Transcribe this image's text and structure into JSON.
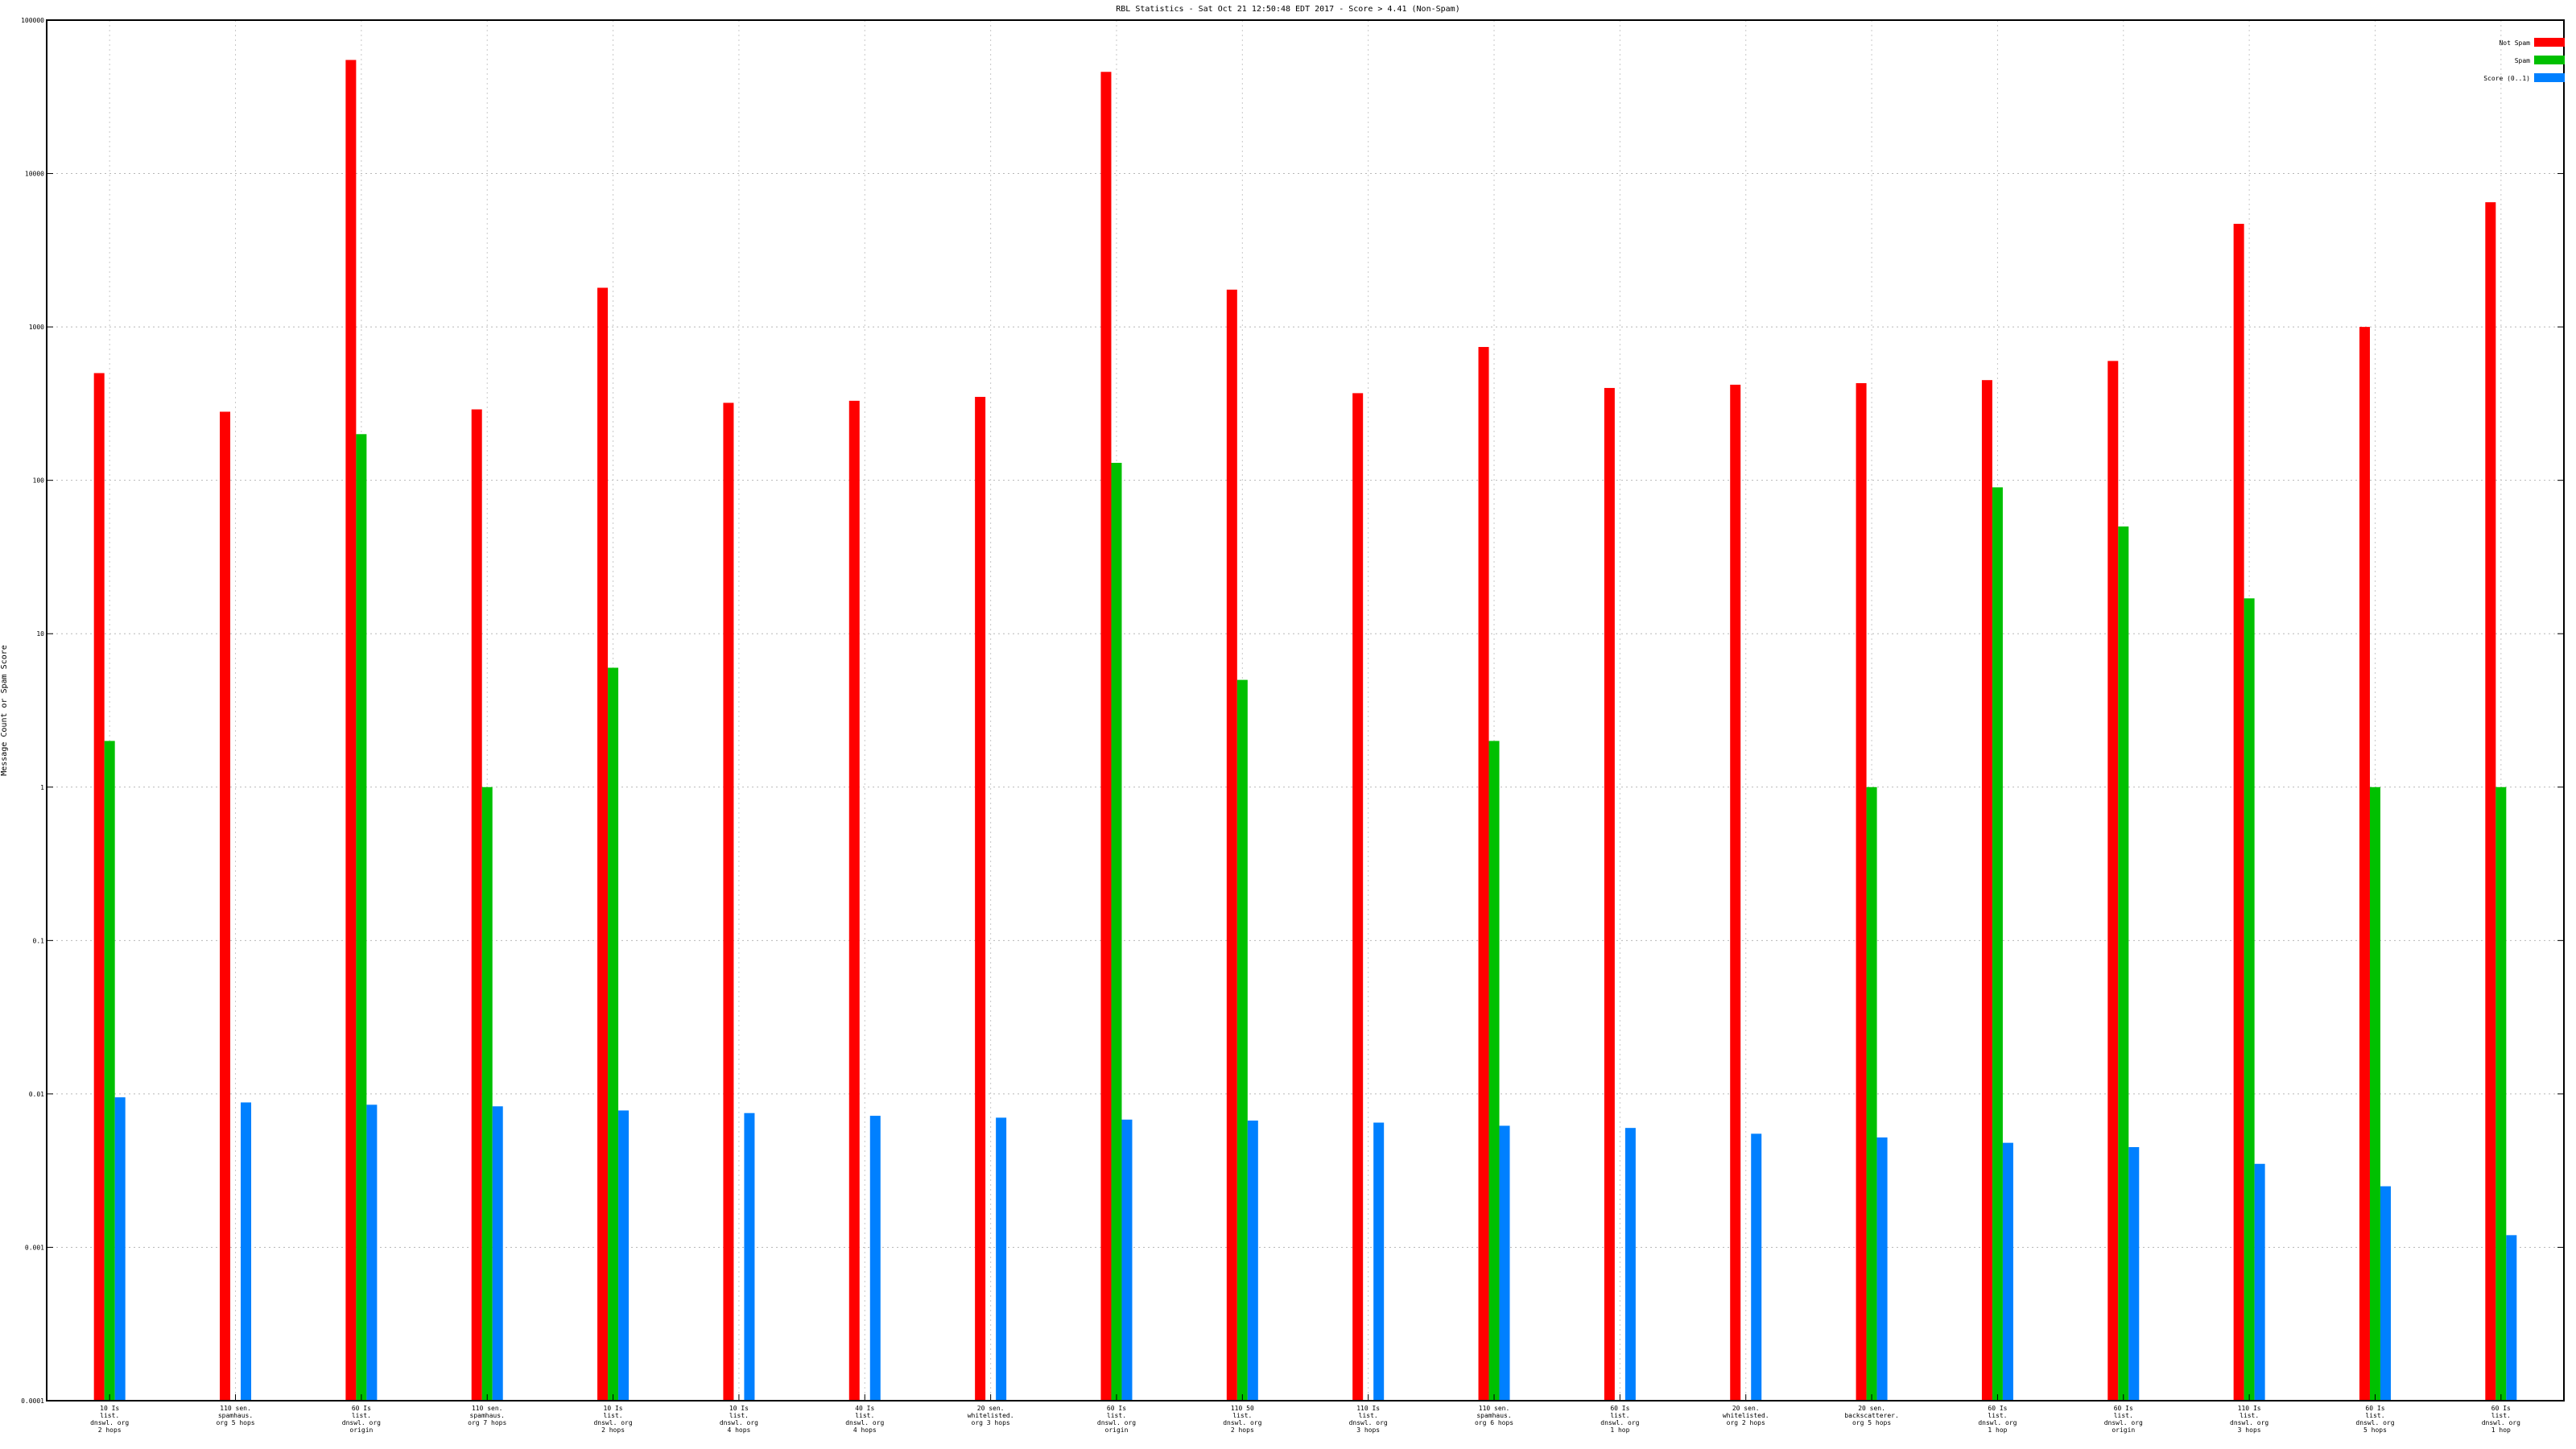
{
  "chart_data": {
    "type": "bar",
    "title": "RBL Statistics - Sat Oct 21 12:50:48 EDT 2017 - Score > 4.41 (Non-Spam)",
    "xlabel": "",
    "ylabel": "Message Count or Spam Score",
    "yscale": "log",
    "ylim": [
      0.0001,
      100000
    ],
    "yticks": [
      {
        "value": 0.0001,
        "label": "0.0001"
      },
      {
        "value": 0.001,
        "label": "0.001"
      },
      {
        "value": 0.01,
        "label": "0.01"
      },
      {
        "value": 0.1,
        "label": "0.1"
      },
      {
        "value": 1,
        "label": "1"
      },
      {
        "value": 10,
        "label": "10"
      },
      {
        "value": 100,
        "label": "100"
      },
      {
        "value": 1000,
        "label": "1000"
      },
      {
        "value": 10000,
        "label": "10000"
      },
      {
        "value": 100000,
        "label": "100000"
      }
    ],
    "grid": true,
    "legend_position": "top-right",
    "categories": [
      "10 Is list. dnswl. org 2 hops",
      "110 sen. spamhaus. org 5 hops",
      "60 Is list. dnswl. org origin",
      "110 sen. spamhaus. org 7 hops",
      "10 Is list. dnswl. org 2 hops",
      "10 Is list. dnswl. org 4 hops",
      "40 Is list. dnswl. org 4 hops",
      "20 sen. whitelisted. org 3 hops",
      "60 Is list. dnswl. org origin",
      "110 50 list. dnswl. org 2 hops",
      "110 Is list. dnswl. org 3 hops",
      "110 sen. spamhaus. org 6 hops",
      "60 Is list. dnswl. org 1 hop",
      "20 sen. whitelisted. org 2 hops",
      "20 sen. backscatterer. org 5 hops",
      "60 Is list. dnswl. org 1 hop",
      "60 Is list. dnswl. org origin",
      "110 Is list. dnswl. org 3 hops",
      "60 Is list. dnswl. org 5 hops",
      "60 Is list. dnswl. org 1 hop"
    ],
    "series": [
      {
        "name": "Not Spam",
        "color": "#ff0000",
        "values": [
          500,
          280,
          55000,
          290,
          1800,
          320,
          330,
          350,
          46000,
          1750,
          370,
          740,
          400,
          420,
          430,
          450,
          600,
          4700,
          1000,
          6500
        ]
      },
      {
        "name": "Spam",
        "color": "#00c000",
        "values": [
          2,
          null,
          200,
          1,
          6,
          null,
          null,
          null,
          130,
          5,
          null,
          2,
          null,
          null,
          1,
          90,
          50,
          17,
          1,
          1
        ]
      },
      {
        "name": "Score (0..1)",
        "color": "#0080ff",
        "values": [
          0.0095,
          0.0088,
          0.0085,
          0.0083,
          0.0078,
          0.0075,
          0.0072,
          0.007,
          0.0068,
          0.0067,
          0.0065,
          0.0062,
          0.006,
          0.0055,
          0.0052,
          0.0048,
          0.0045,
          0.0035,
          0.0025,
          0.0012
        ]
      }
    ]
  }
}
